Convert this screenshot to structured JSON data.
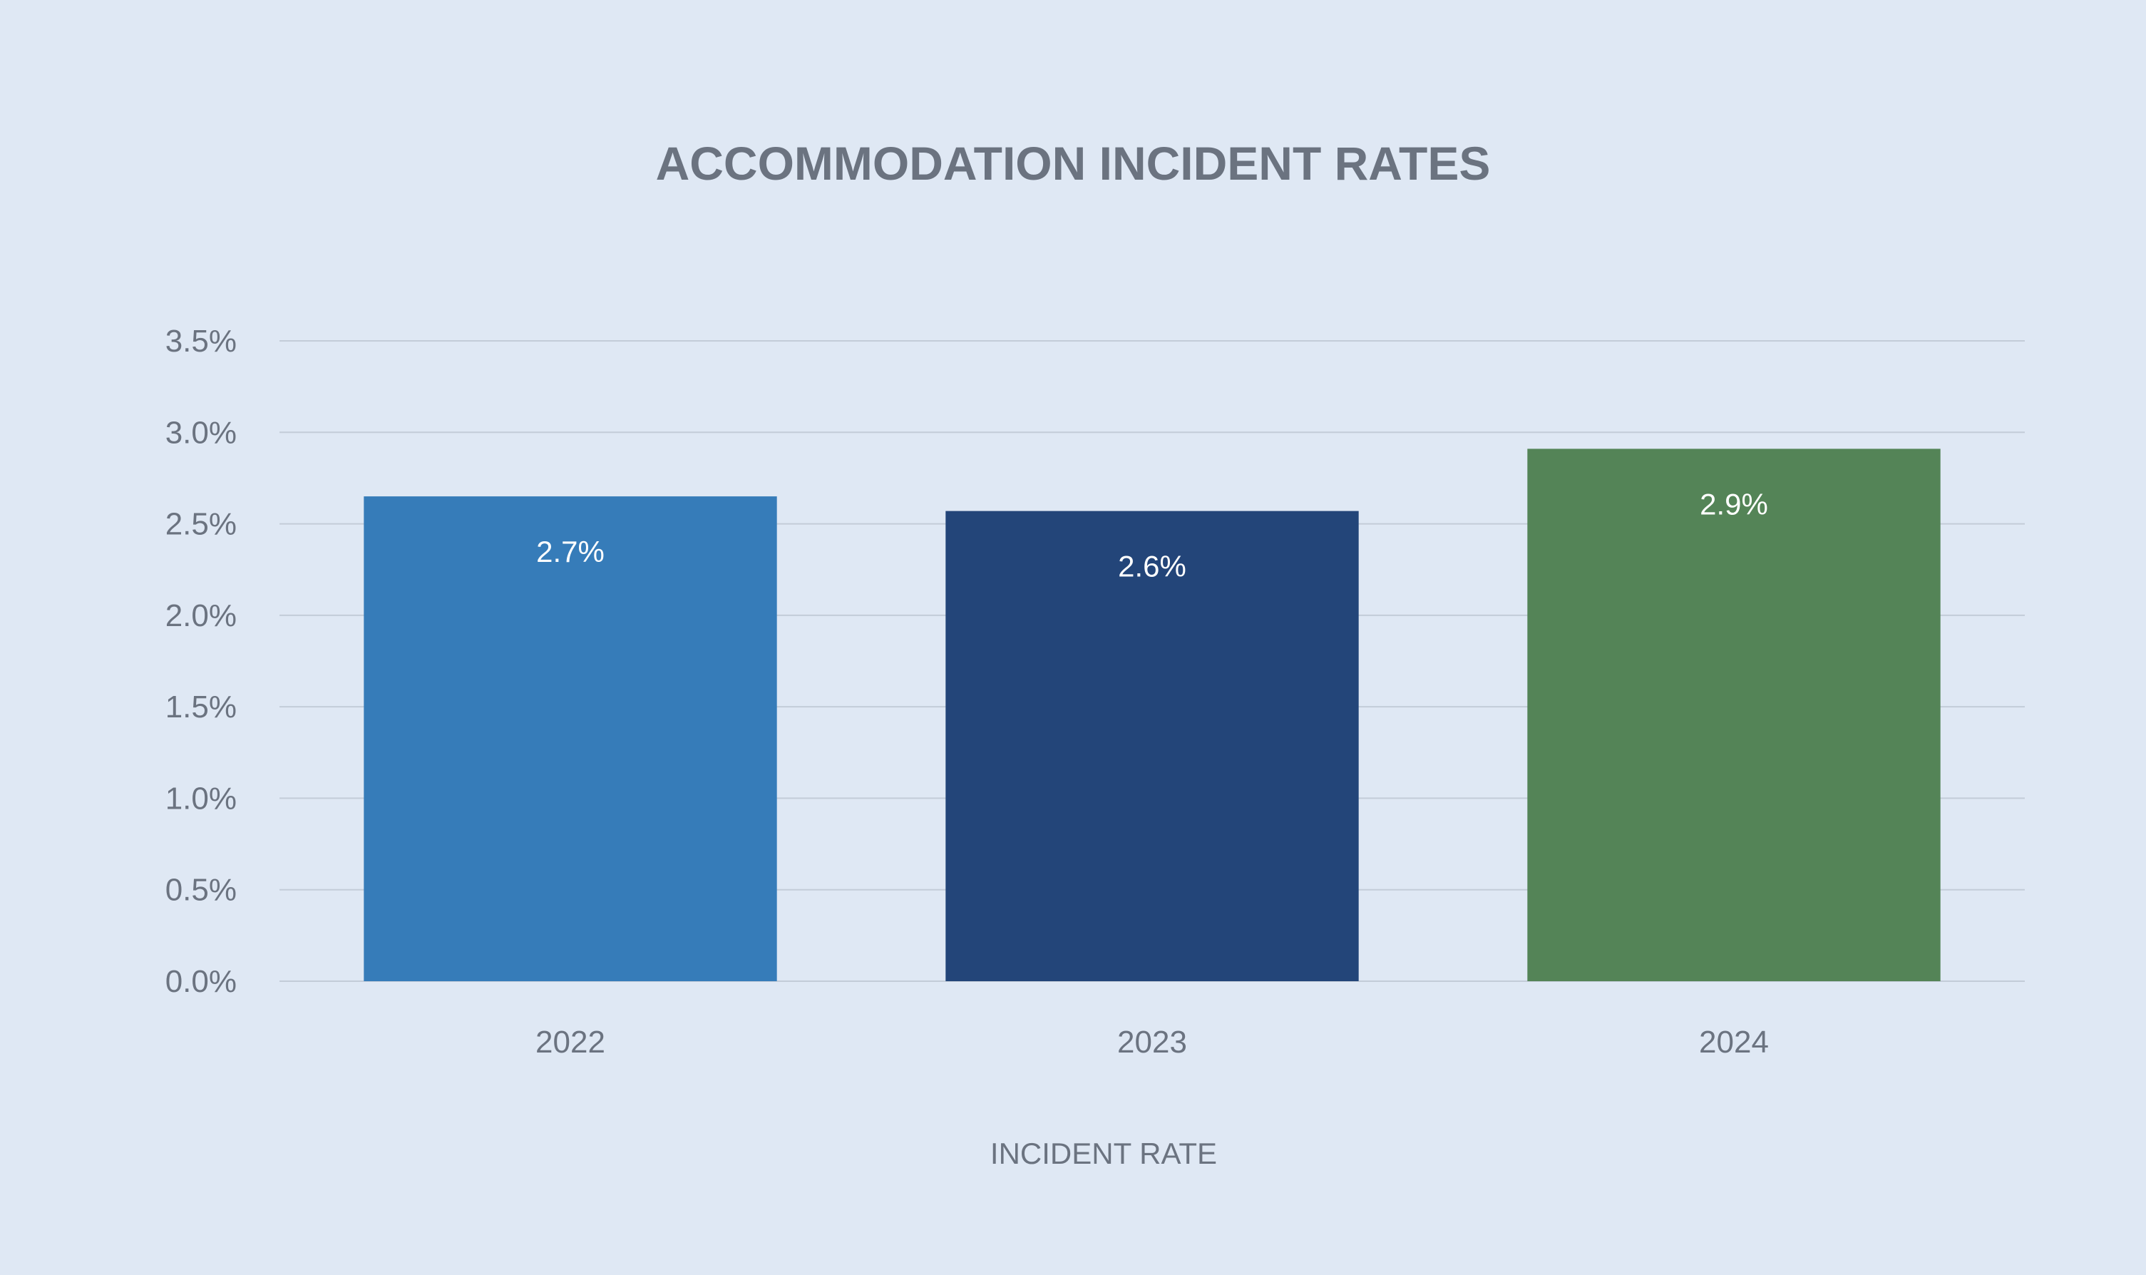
{
  "chart_data": {
    "type": "bar",
    "title": "ACCOMMODATION INCIDENT RATES",
    "xlabel": "INCIDENT RATE",
    "ylabel": "",
    "categories": [
      "2022",
      "2023",
      "2024"
    ],
    "values": [
      2.65,
      2.57,
      2.91
    ],
    "data_labels": [
      "2.7%",
      "2.6%",
      "2.9%"
    ],
    "bar_colors": [
      "#367cb9",
      "#234579",
      "#548457"
    ],
    "ylim": [
      0,
      3.5
    ],
    "y_ticks": [
      0,
      0.5,
      1.0,
      1.5,
      2.0,
      2.5,
      3.0,
      3.5
    ],
    "y_tick_labels": [
      "0.0%",
      "0.5%",
      "1.0%",
      "1.5%",
      "2.0%",
      "2.5%",
      "3.0%",
      "3.5%"
    ],
    "grid": true,
    "legend": "none"
  }
}
